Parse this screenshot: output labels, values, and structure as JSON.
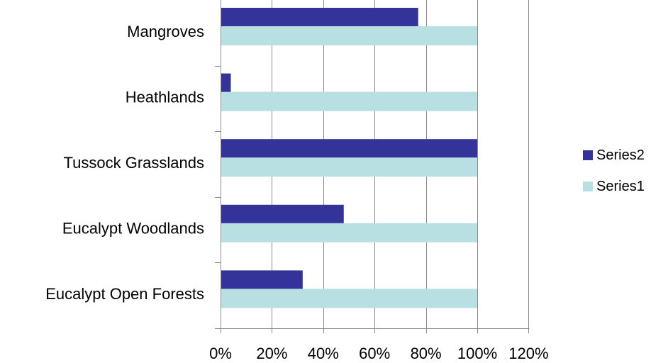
{
  "chart_data": {
    "type": "bar",
    "orientation": "horizontal",
    "categories": [
      "Mangroves",
      "Heathlands",
      "Tussock Grasslands",
      "Eucalypt Woodlands",
      "Eucalypt Open Forests"
    ],
    "series": [
      {
        "name": "Series2",
        "color": "#333399",
        "values": [
          0.77,
          0.04,
          1.0,
          0.48,
          0.32
        ]
      },
      {
        "name": "Series1",
        "color": "#b8e0e3",
        "values": [
          1.0,
          1.0,
          1.0,
          1.0,
          1.0
        ]
      }
    ],
    "xlim": [
      0,
      1.2
    ],
    "xticks": [
      0,
      0.2,
      0.4,
      0.6,
      0.8,
      1.0,
      1.2
    ],
    "xtick_labels": [
      "0%",
      "20%",
      "40%",
      "60%",
      "80%",
      "100%",
      "120%"
    ],
    "vertical_gridlines": true,
    "legend_position": "right",
    "legend_order": [
      "Series2",
      "Series1"
    ],
    "title": "",
    "xlabel": "",
    "ylabel": ""
  }
}
